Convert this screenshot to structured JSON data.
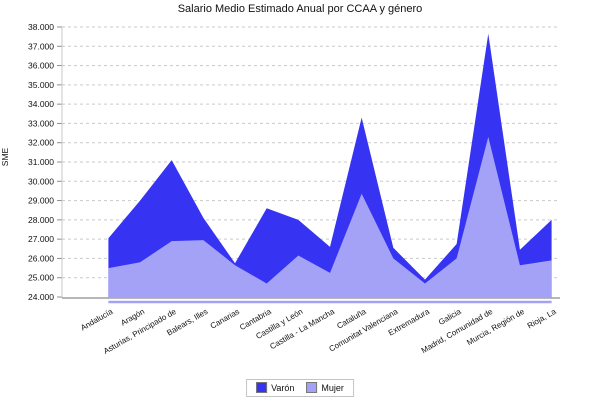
{
  "title": "Salario Medio Estimado Anual por CCAA y género",
  "y_axis_label": "SME",
  "legend": {
    "position": "bottom-center",
    "items": [
      {
        "label": "Varón",
        "color": "#3633f2"
      },
      {
        "label": "Mujer",
        "color": "#a3a2f6"
      }
    ]
  },
  "chart_data": {
    "type": "area",
    "title": "Salario Medio Estimado Anual por CCAA y género",
    "xlabel": "",
    "ylabel": "SME",
    "ylim": [
      24000,
      38000
    ],
    "ytick_step": 1000,
    "ytick_labels": [
      "24.000",
      "25.000",
      "26.000",
      "27.000",
      "28.000",
      "29.000",
      "30.000",
      "31.000",
      "32.000",
      "33.000",
      "34.000",
      "35.000",
      "36.000",
      "37.000",
      "38.000"
    ],
    "grid": "horizontal-dashed",
    "legend_position": "bottom",
    "categories": [
      "Andalucía",
      "Aragón",
      "Asturias, Principado de",
      "Balears, Illes",
      "Canarias",
      "Cantabria",
      "Castilla y León",
      "Castilla - La Mancha",
      "Cataluña",
      "Comunitat Valenciana",
      "Extremadura",
      "Galicia",
      "Madrid, Comunidad de",
      "Murcia, Región de",
      "Rioja, La"
    ],
    "series": [
      {
        "name": "Varón",
        "color": "#3633f2",
        "values": [
          27050,
          29000,
          31100,
          28100,
          25750,
          28600,
          28000,
          26600,
          33300,
          26550,
          24900,
          26750,
          37650,
          26450,
          28000
        ]
      },
      {
        "name": "Mujer",
        "color": "#a3a2f6",
        "values": [
          25500,
          25800,
          26900,
          26950,
          25650,
          24700,
          26150,
          25250,
          29350,
          26000,
          24700,
          26000,
          32300,
          25650,
          25900
        ]
      }
    ],
    "axis_colors": {
      "gridline": "#c9c9c9",
      "axis_line": "#8c8c8c",
      "tick": "#8c8c8c"
    }
  }
}
